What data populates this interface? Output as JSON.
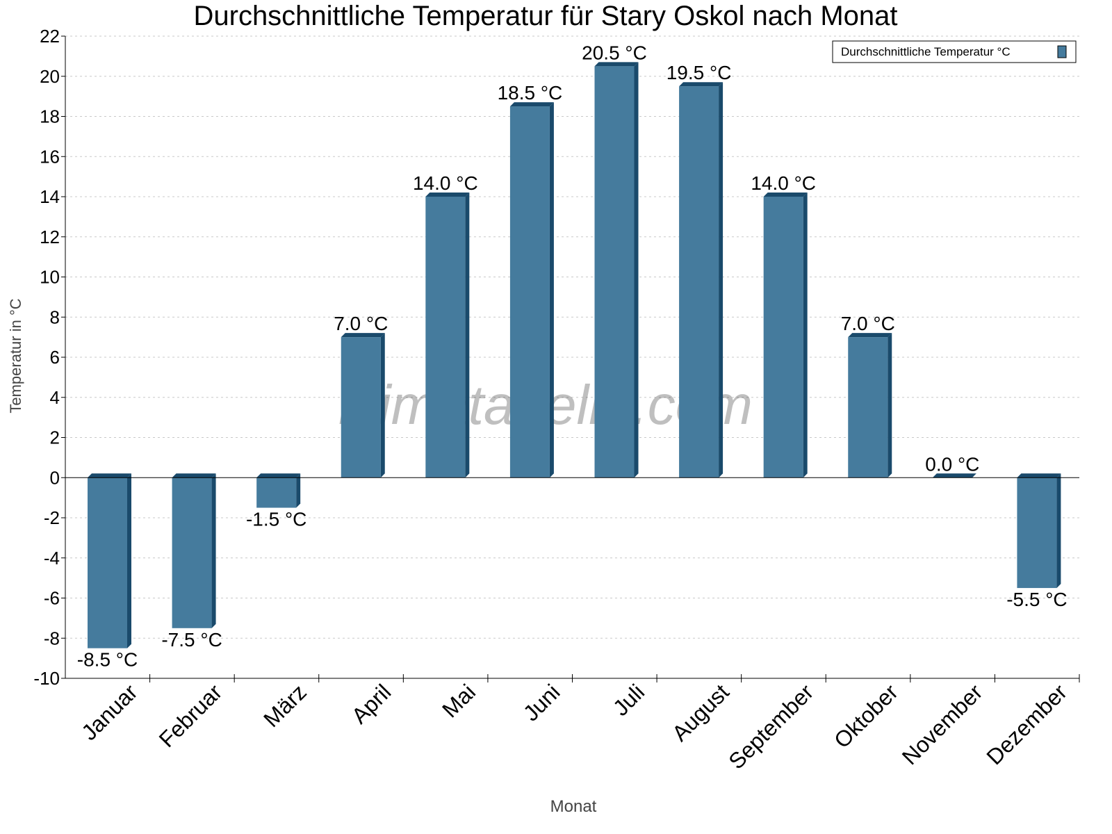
{
  "chart_data": {
    "type": "bar",
    "title": "Durchschnittliche Temperatur für Stary Oskol nach Monat",
    "xlabel": "Monat",
    "ylabel": "Temperatur in °C",
    "ylim": [
      -10,
      22
    ],
    "yticks": [
      -10,
      -8,
      -6,
      -4,
      -2,
      0,
      2,
      4,
      6,
      8,
      10,
      12,
      14,
      16,
      18,
      20,
      22
    ],
    "grid": true,
    "legend_position": "top-right",
    "categories": [
      "Januar",
      "Februar",
      "März",
      "April",
      "Mai",
      "Juni",
      "Juli",
      "August",
      "September",
      "Oktober",
      "November",
      "Dezember"
    ],
    "series": [
      {
        "name": "Durchschnittliche Temperatur °C",
        "values": [
          -8.5,
          -7.5,
          -1.5,
          7.0,
          14.0,
          18.5,
          20.5,
          19.5,
          14.0,
          7.0,
          0.0,
          -5.5
        ],
        "data_labels": [
          "-8.5 °C",
          "-7.5 °C",
          "-1.5 °C",
          "7.0 °C",
          "14.0 °C",
          "18.5 °C",
          "20.5 °C",
          "19.5 °C",
          "14.0 °C",
          "7.0 °C",
          "0.0 °C",
          "-5.5 °C"
        ],
        "color": "#457b9d",
        "side_color": "#1a4a6b"
      }
    ],
    "watermark": "klimatabelle.com"
  }
}
